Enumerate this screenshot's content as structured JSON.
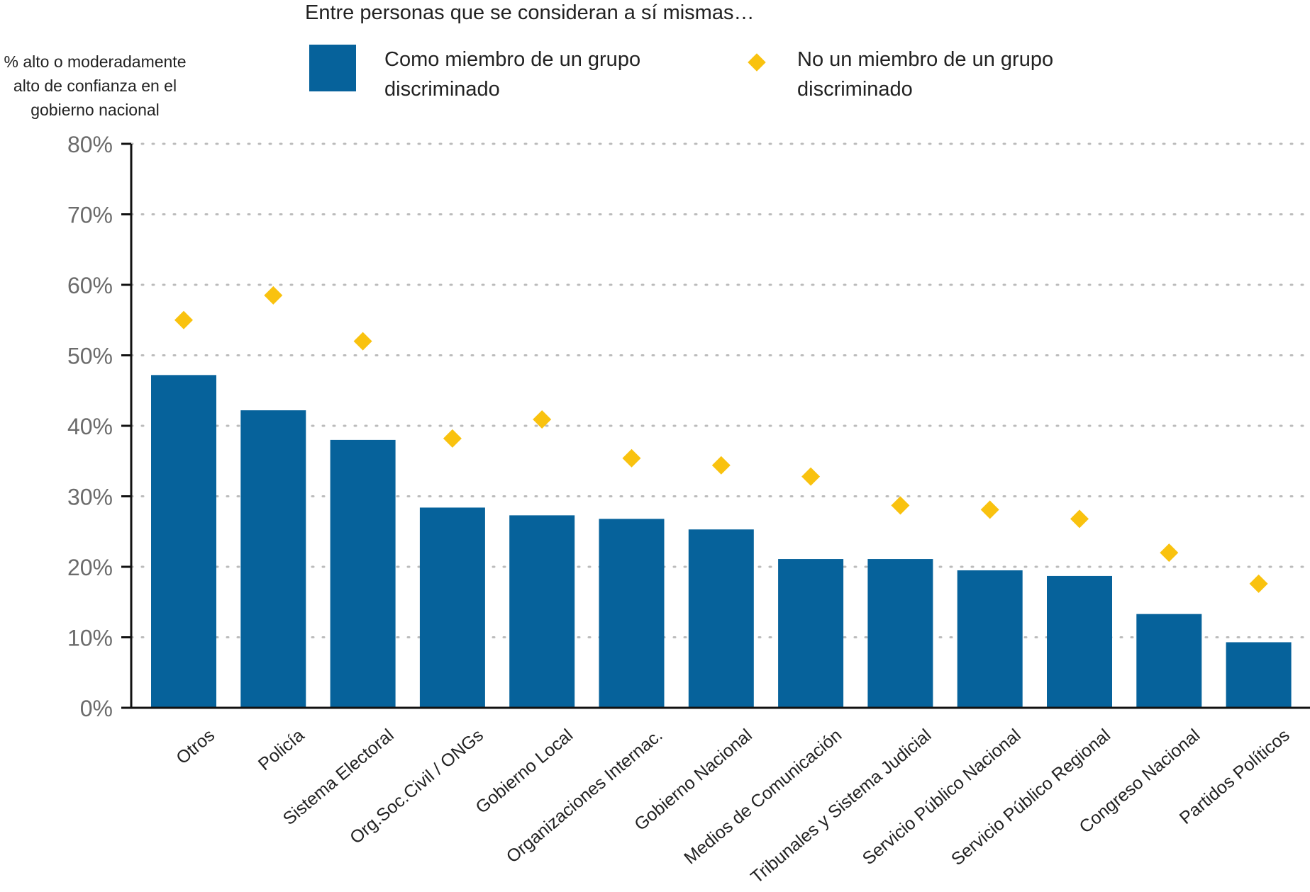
{
  "legend": {
    "title": "Entre personas que se consideran a sí mismas…",
    "series_a_label": "Como miembro de un grupo discriminado",
    "series_b_label": "No un miembro de un grupo discriminado"
  },
  "colors": {
    "bar": "#06629b",
    "marker": "#f9c20f",
    "grid": "#bbbbbb",
    "axis": "#111111",
    "tick_text": "#6b6b6b"
  },
  "chart_data": {
    "type": "bar",
    "ylabel": "% alto o moderadamente alto de confianza en el gobierno nacional",
    "ylim": [
      0,
      80
    ],
    "yticks": [
      0,
      10,
      20,
      30,
      40,
      50,
      60,
      70,
      80
    ],
    "ytick_labels": [
      "0%",
      "10%",
      "20%",
      "30%",
      "40%",
      "50%",
      "60%",
      "70%",
      "80%"
    ],
    "grid": "horizontal dotted",
    "categories": [
      "Otros",
      "Policía",
      "Sistema Electoral",
      "Org.Soc.Civil / ONGs",
      "Gobierno Local",
      "Organizaciones Internac.",
      "Gobierno Nacional",
      "Medios de Comunicación",
      "Tribunales y Sistema Judicial",
      "Servicio Público Nacional",
      "Servicio Público Regional",
      "Congreso Nacional",
      "Partidos Políticos"
    ],
    "series": [
      {
        "name": "Como miembro de un grupo discriminado",
        "mark": "bar",
        "values": [
          47.2,
          42.2,
          38.0,
          28.4,
          27.3,
          26.8,
          25.3,
          21.1,
          21.1,
          19.5,
          18.7,
          13.3,
          9.3
        ]
      },
      {
        "name": "No un miembro de un grupo discriminado",
        "mark": "diamond",
        "values": [
          55.0,
          58.5,
          52.0,
          38.2,
          40.9,
          35.4,
          34.4,
          32.8,
          28.7,
          28.1,
          26.8,
          22.0,
          17.6
        ]
      }
    ]
  }
}
